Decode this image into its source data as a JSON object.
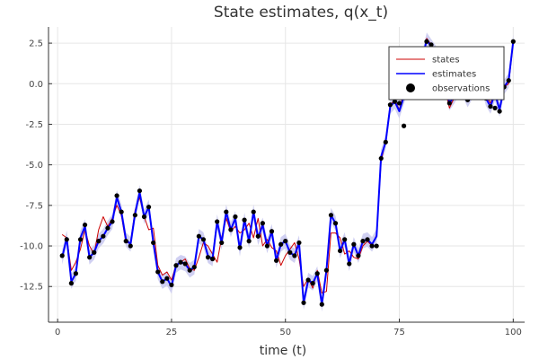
{
  "chart_data": {
    "type": "line",
    "title": "State estimates, q(x_t)",
    "xlabel": "time (t)",
    "ylabel": "",
    "xlim": [
      -2,
      102.5
    ],
    "ylim": [
      -14.7,
      3.5
    ],
    "xticks": [
      0,
      25,
      50,
      75,
      100
    ],
    "yticks": [
      2.5,
      0.0,
      -2.5,
      -5.0,
      -7.5,
      -10.0,
      -12.5
    ],
    "ytick_labels": [
      "2.5",
      "0.0",
      "-2.5",
      "-5.0",
      "-7.5",
      "-10.0",
      "-12.5"
    ],
    "grid": true,
    "legend_position": "top-right",
    "colors": {
      "states": "#cc0000",
      "estimates": "#0000ff",
      "band": "#c8c8f0",
      "observations": "#000000"
    },
    "legend": [
      "states",
      "estimates",
      "observations"
    ],
    "series": [
      {
        "name": "states",
        "x": [
          1,
          2,
          3,
          4,
          5,
          6,
          7,
          8,
          9,
          10,
          11,
          12,
          13,
          14,
          15,
          16,
          17,
          18,
          19,
          20,
          21,
          22,
          23,
          24,
          25,
          26,
          27,
          28,
          29,
          30,
          31,
          32,
          33,
          34,
          35,
          36,
          37,
          38,
          39,
          40,
          41,
          42,
          43,
          44,
          45,
          46,
          47,
          48,
          49,
          50,
          51,
          52,
          53,
          54,
          55,
          56,
          57,
          58,
          59,
          60,
          61,
          62,
          63,
          64,
          65,
          66,
          67,
          68,
          69,
          70,
          71,
          72,
          73,
          74,
          75,
          76,
          77,
          78,
          79,
          80,
          81,
          82,
          83,
          84,
          85,
          86,
          87,
          88,
          89,
          90,
          91,
          92,
          93,
          94,
          95,
          96,
          97,
          98,
          99,
          100
        ],
        "y": [
          -9.3,
          -9.5,
          -11.5,
          -11.0,
          -10.2,
          -9.0,
          -10.0,
          -10.5,
          -9.0,
          -8.2,
          -8.8,
          -8.3,
          -7.5,
          -8.1,
          -9.8,
          -9.8,
          -7.8,
          -7.0,
          -8.2,
          -9.0,
          -8.9,
          -11.2,
          -11.8,
          -11.6,
          -12.1,
          -11.2,
          -11.0,
          -10.8,
          -11.4,
          -11.5,
          -10.7,
          -9.8,
          -10.0,
          -10.5,
          -11.0,
          -9.5,
          -8.3,
          -9.1,
          -8.8,
          -9.2,
          -9.0,
          -8.6,
          -9.5,
          -8.3,
          -10.0,
          -9.6,
          -10.1,
          -10.3,
          -11.2,
          -10.6,
          -10.2,
          -9.8,
          -10.8,
          -12.5,
          -12.0,
          -12.6,
          -11.5,
          -12.9,
          -12.8,
          -9.2,
          -9.2,
          -9.5,
          -10.5,
          -10.3,
          -10.7,
          -10.8,
          -10.0,
          -9.7,
          -10.0,
          -9.3,
          -4.8,
          -3.5,
          -1.3,
          -1.0,
          -1.6,
          -0.5,
          -0.2,
          0.0,
          0.2,
          1.5,
          2.8,
          2.4,
          1.6,
          0.8,
          -0.3,
          -1.5,
          -0.9,
          -0.1,
          -0.6,
          -1.1,
          -0.3,
          0.0,
          0.2,
          -0.7,
          -1.2,
          -0.5,
          -1.7,
          -0.2,
          0.0,
          2.5
        ]
      },
      {
        "name": "estimates",
        "x": [
          1,
          2,
          3,
          4,
          5,
          6,
          7,
          8,
          9,
          10,
          11,
          12,
          13,
          14,
          15,
          16,
          17,
          18,
          19,
          20,
          21,
          22,
          23,
          24,
          25,
          26,
          27,
          28,
          29,
          30,
          31,
          32,
          33,
          34,
          35,
          36,
          37,
          38,
          39,
          40,
          41,
          42,
          43,
          44,
          45,
          46,
          47,
          48,
          49,
          50,
          51,
          52,
          53,
          54,
          55,
          56,
          57,
          58,
          59,
          60,
          61,
          62,
          63,
          64,
          65,
          66,
          67,
          68,
          69,
          70,
          71,
          72,
          73,
          74,
          75,
          76,
          77,
          78,
          79,
          80,
          81,
          82,
          83,
          84,
          85,
          86,
          87,
          88,
          89,
          90,
          91,
          92,
          93,
          94,
          95,
          96,
          97,
          98,
          99,
          100
        ],
        "y": [
          -10.7,
          -9.5,
          -12.2,
          -11.7,
          -9.5,
          -8.8,
          -10.7,
          -10.4,
          -9.7,
          -9.4,
          -8.9,
          -8.5,
          -7.0,
          -7.9,
          -9.6,
          -9.9,
          -8.0,
          -6.7,
          -8.2,
          -7.6,
          -9.8,
          -11.6,
          -12.2,
          -12.0,
          -12.5,
          -11.2,
          -11.0,
          -11.1,
          -11.5,
          -11.3,
          -9.4,
          -9.6,
          -10.6,
          -10.8,
          -8.5,
          -9.8,
          -7.9,
          -9.0,
          -8.3,
          -10.2,
          -8.4,
          -9.7,
          -7.9,
          -9.5,
          -8.7,
          -10.0,
          -9.1,
          -10.9,
          -9.9,
          -9.7,
          -10.4,
          -10.6,
          -9.8,
          -13.5,
          -12.1,
          -12.3,
          -11.7,
          -13.6,
          -11.5,
          -8.1,
          -8.6,
          -10.3,
          -9.6,
          -11.1,
          -9.9,
          -10.6,
          -9.7,
          -9.6,
          -9.9,
          -9.4,
          -4.5,
          -3.6,
          -1.4,
          -1.1,
          -1.7,
          -0.8,
          0.0,
          0.4,
          0.7,
          1.5,
          2.7,
          2.3,
          1.9,
          0.9,
          0.2,
          -1.2,
          -0.8,
          -0.3,
          -0.4,
          -1.0,
          -0.5,
          -0.1,
          0.1,
          -0.9,
          -1.4,
          -0.6,
          -1.6,
          -0.2,
          0.2,
          2.6
        ]
      },
      {
        "name": "observations",
        "x": [
          1,
          2,
          3,
          4,
          5,
          6,
          7,
          8,
          9,
          10,
          11,
          12,
          13,
          14,
          15,
          16,
          17,
          18,
          19,
          20,
          21,
          22,
          23,
          24,
          25,
          26,
          27,
          28,
          29,
          30,
          31,
          32,
          33,
          34,
          35,
          36,
          37,
          38,
          39,
          40,
          41,
          42,
          43,
          44,
          45,
          46,
          47,
          48,
          49,
          50,
          51,
          52,
          53,
          54,
          55,
          56,
          57,
          58,
          59,
          60,
          61,
          62,
          63,
          64,
          65,
          66,
          67,
          68,
          69,
          70,
          71,
          72,
          73,
          74,
          75,
          76,
          77,
          78,
          79,
          80,
          81,
          82,
          83,
          84,
          85,
          86,
          87,
          88,
          89,
          90,
          91,
          92,
          93,
          94,
          95,
          96,
          97,
          98,
          99,
          100
        ],
        "y": [
          -10.6,
          -9.6,
          -12.3,
          -11.7,
          -9.6,
          -8.7,
          -10.7,
          -10.4,
          -9.7,
          -9.4,
          -8.9,
          -8.5,
          -6.9,
          -7.9,
          -9.7,
          -10.0,
          -8.1,
          -6.6,
          -8.2,
          -7.6,
          -9.8,
          -11.6,
          -12.2,
          -12.0,
          -12.4,
          -11.2,
          -11.0,
          -11.1,
          -11.5,
          -11.3,
          -9.4,
          -9.6,
          -10.7,
          -10.8,
          -8.5,
          -9.8,
          -7.9,
          -9.0,
          -8.2,
          -10.1,
          -8.4,
          -9.7,
          -7.9,
          -9.4,
          -8.6,
          -10.0,
          -9.1,
          -10.9,
          -9.9,
          -9.7,
          -10.4,
          -10.6,
          -9.8,
          -13.5,
          -12.1,
          -12.3,
          -11.7,
          -13.6,
          -11.5,
          -8.1,
          -8.6,
          -10.3,
          -9.6,
          -11.1,
          -9.9,
          -10.6,
          -9.7,
          -9.6,
          -10.0,
          -10.0,
          -4.6,
          -3.6,
          -1.3,
          -1.1,
          -1.2,
          -2.6,
          0.0,
          0.4,
          0.7,
          1.5,
          2.6,
          2.4,
          1.8,
          0.8,
          0.2,
          -1.2,
          -0.8,
          -0.3,
          -0.4,
          -1.0,
          -0.5,
          -0.1,
          0.1,
          -0.9,
          -1.4,
          -1.5,
          -1.7,
          -0.2,
          0.2,
          2.6
        ]
      }
    ],
    "band_halfwidth": 0.45
  }
}
